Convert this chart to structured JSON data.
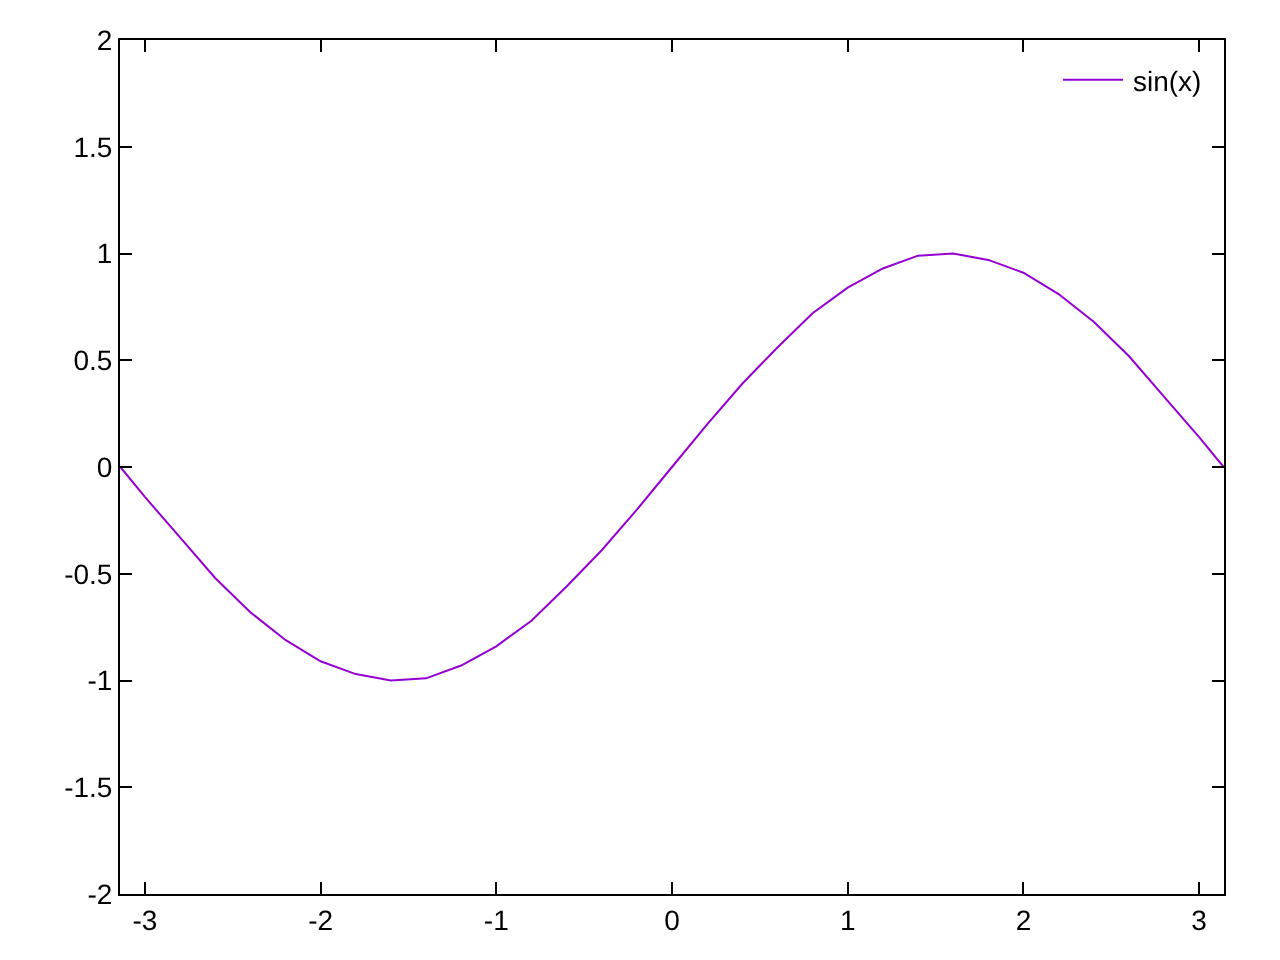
{
  "chart_data": {
    "type": "line",
    "x": [
      -3.14,
      -3.0,
      -2.8,
      -2.6,
      -2.4,
      -2.2,
      -2.0,
      -1.8,
      -1.6,
      -1.4,
      -1.2,
      -1.0,
      -0.8,
      -0.6,
      -0.4,
      -0.2,
      0,
      0.2,
      0.4,
      0.6,
      0.8,
      1.0,
      1.2,
      1.4,
      1.6,
      1.8,
      2.0,
      2.2,
      2.4,
      2.6,
      2.8,
      3.0,
      3.14
    ],
    "series": [
      {
        "name": "sin(x)",
        "color": "#9400d3",
        "values": [
          0.0,
          -0.14,
          -0.33,
          -0.52,
          -0.68,
          -0.81,
          -0.91,
          -0.97,
          -1.0,
          -0.99,
          -0.93,
          -0.84,
          -0.72,
          -0.56,
          -0.39,
          -0.2,
          0.0,
          0.2,
          0.39,
          0.56,
          0.72,
          0.84,
          0.93,
          0.99,
          1.0,
          0.97,
          0.91,
          0.81,
          0.68,
          0.52,
          0.33,
          0.14,
          0.0
        ]
      }
    ],
    "xlim": [
      -3.14159,
      3.14159
    ],
    "xticks": [
      -3,
      -2,
      -1,
      0,
      1,
      2,
      3
    ],
    "ylim": [
      -2,
      2
    ],
    "yticks": [
      -2,
      -1.5,
      -1,
      -0.5,
      0,
      0.5,
      1,
      1.5,
      2
    ],
    "legend": "top right",
    "marker": "none",
    "line_style": "solid"
  }
}
